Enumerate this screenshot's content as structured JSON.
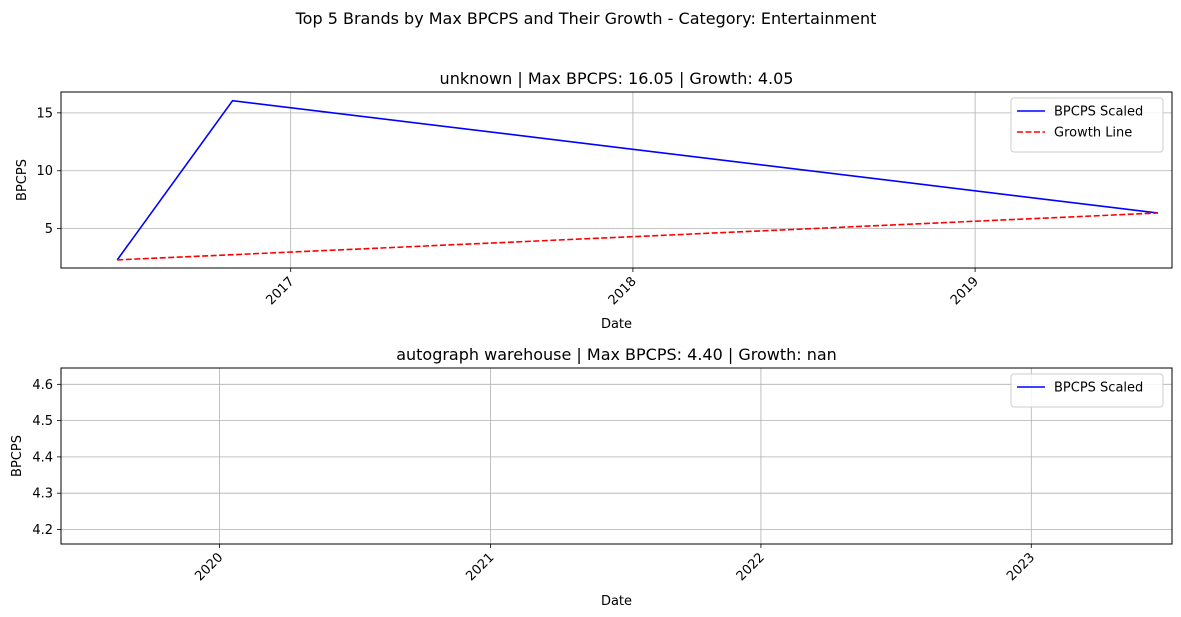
{
  "figure_title": "Top 5 Brands by Max BPCPS and Their Growth - Category: Entertainment",
  "colors": {
    "bpcps": "#0000ff",
    "growth": "#ff0000",
    "grid": "#b0b0b0"
  },
  "chart_data": [
    {
      "type": "line",
      "title": "unknown | Max BPCPS: 16.05 | Growth: 4.05",
      "xlabel": "Date",
      "ylabel": "BPCPS",
      "xlim": [
        "2016-05-01",
        "2019-07-30"
      ],
      "ylim": [
        1.6,
        16.8
      ],
      "xticks": [
        {
          "date": "2017-01-01",
          "label": "2017"
        },
        {
          "date": "2018-01-01",
          "label": "2018"
        },
        {
          "date": "2019-01-01",
          "label": "2019"
        }
      ],
      "yticks": [
        {
          "value": 5,
          "label": "5"
        },
        {
          "value": 10,
          "label": "10"
        },
        {
          "value": 15,
          "label": "15"
        }
      ],
      "grid": true,
      "legend_position": "top-right",
      "series": [
        {
          "name": "BPCPS Scaled",
          "style": "solid",
          "color": "#0000ff",
          "points": [
            {
              "x": "2016-06-30",
              "y": 2.3
            },
            {
              "x": "2016-10-31",
              "y": 16.05
            },
            {
              "x": "2019-07-15",
              "y": 6.35
            }
          ]
        },
        {
          "name": "Growth Line",
          "style": "dashed",
          "color": "#ff0000",
          "points": [
            {
              "x": "2016-06-30",
              "y": 2.3
            },
            {
              "x": "2019-07-15",
              "y": 6.35
            }
          ]
        }
      ]
    },
    {
      "type": "line",
      "title": "autograph warehouse | Max BPCPS: 4.40 | Growth: nan",
      "xlabel": "Date",
      "ylabel": "BPCPS",
      "xlim": [
        "2019-06-01",
        "2023-07-10"
      ],
      "ylim": [
        4.16,
        4.645
      ],
      "xticks": [
        {
          "date": "2020-01-01",
          "label": "2020"
        },
        {
          "date": "2021-01-01",
          "label": "2021"
        },
        {
          "date": "2022-01-01",
          "label": "2022"
        },
        {
          "date": "2023-01-01",
          "label": "2023"
        }
      ],
      "yticks": [
        {
          "value": 4.2,
          "label": "4.2"
        },
        {
          "value": 4.3,
          "label": "4.3"
        },
        {
          "value": 4.4,
          "label": "4.4"
        },
        {
          "value": 4.5,
          "label": "4.5"
        },
        {
          "value": 4.6,
          "label": "4.6"
        }
      ],
      "grid": true,
      "legend_position": "top-right",
      "series": [
        {
          "name": "BPCPS Scaled",
          "style": "solid",
          "color": "#0000ff",
          "points": []
        }
      ]
    }
  ]
}
